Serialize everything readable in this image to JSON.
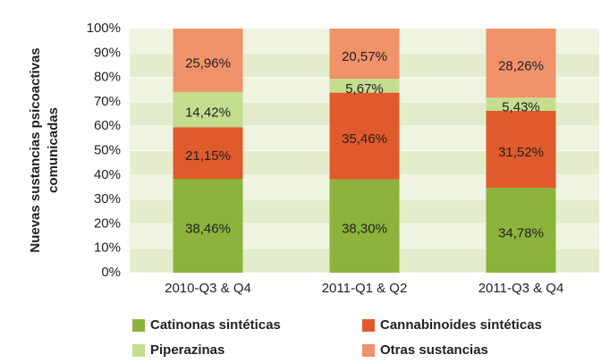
{
  "chart_data": {
    "type": "stacked_bar",
    "ylabel": [
      "Nuevas sustancias psicoactivas",
      "comunicadas"
    ],
    "categories": [
      "2010-Q3 & Q4",
      "2011-Q1 & Q2",
      "2011-Q3 & Q4"
    ],
    "series": [
      {
        "name": "Catinonas sintéticas",
        "color": "#8cb33b",
        "values": [
          38.46,
          38.3,
          34.78
        ],
        "value_labels": [
          "38,46%",
          "38,30%",
          "34,78%"
        ]
      },
      {
        "name": "Cannabinoides sintéticas",
        "color": "#e05a2b",
        "values": [
          21.15,
          35.46,
          31.52
        ],
        "value_labels": [
          "21,15%",
          "35,46%",
          "31,52%"
        ]
      },
      {
        "name": "Piperazinas",
        "color": "#c5dd8f",
        "values": [
          14.42,
          5.67,
          5.43
        ],
        "value_labels": [
          "14,42%",
          "5,67%",
          "5,43%"
        ]
      },
      {
        "name": "Otras sustancias",
        "color": "#f0926a",
        "values": [
          25.96,
          20.57,
          28.26
        ],
        "value_labels": [
          "25,96%",
          "20,57%",
          "28,26%"
        ]
      }
    ],
    "ylim": [
      0,
      100
    ],
    "yticks": [
      {
        "value": 0,
        "label": "0%"
      },
      {
        "value": 10,
        "label": "10%"
      },
      {
        "value": 20,
        "label": "20%"
      },
      {
        "value": 30,
        "label": "30%"
      },
      {
        "value": 40,
        "label": "40%"
      },
      {
        "value": 50,
        "label": "50%"
      },
      {
        "value": 60,
        "label": "60%"
      },
      {
        "value": 70,
        "label": "70%"
      },
      {
        "value": 80,
        "label": "80%"
      },
      {
        "value": 90,
        "label": "90%"
      },
      {
        "value": 100,
        "label": "100%"
      }
    ]
  }
}
